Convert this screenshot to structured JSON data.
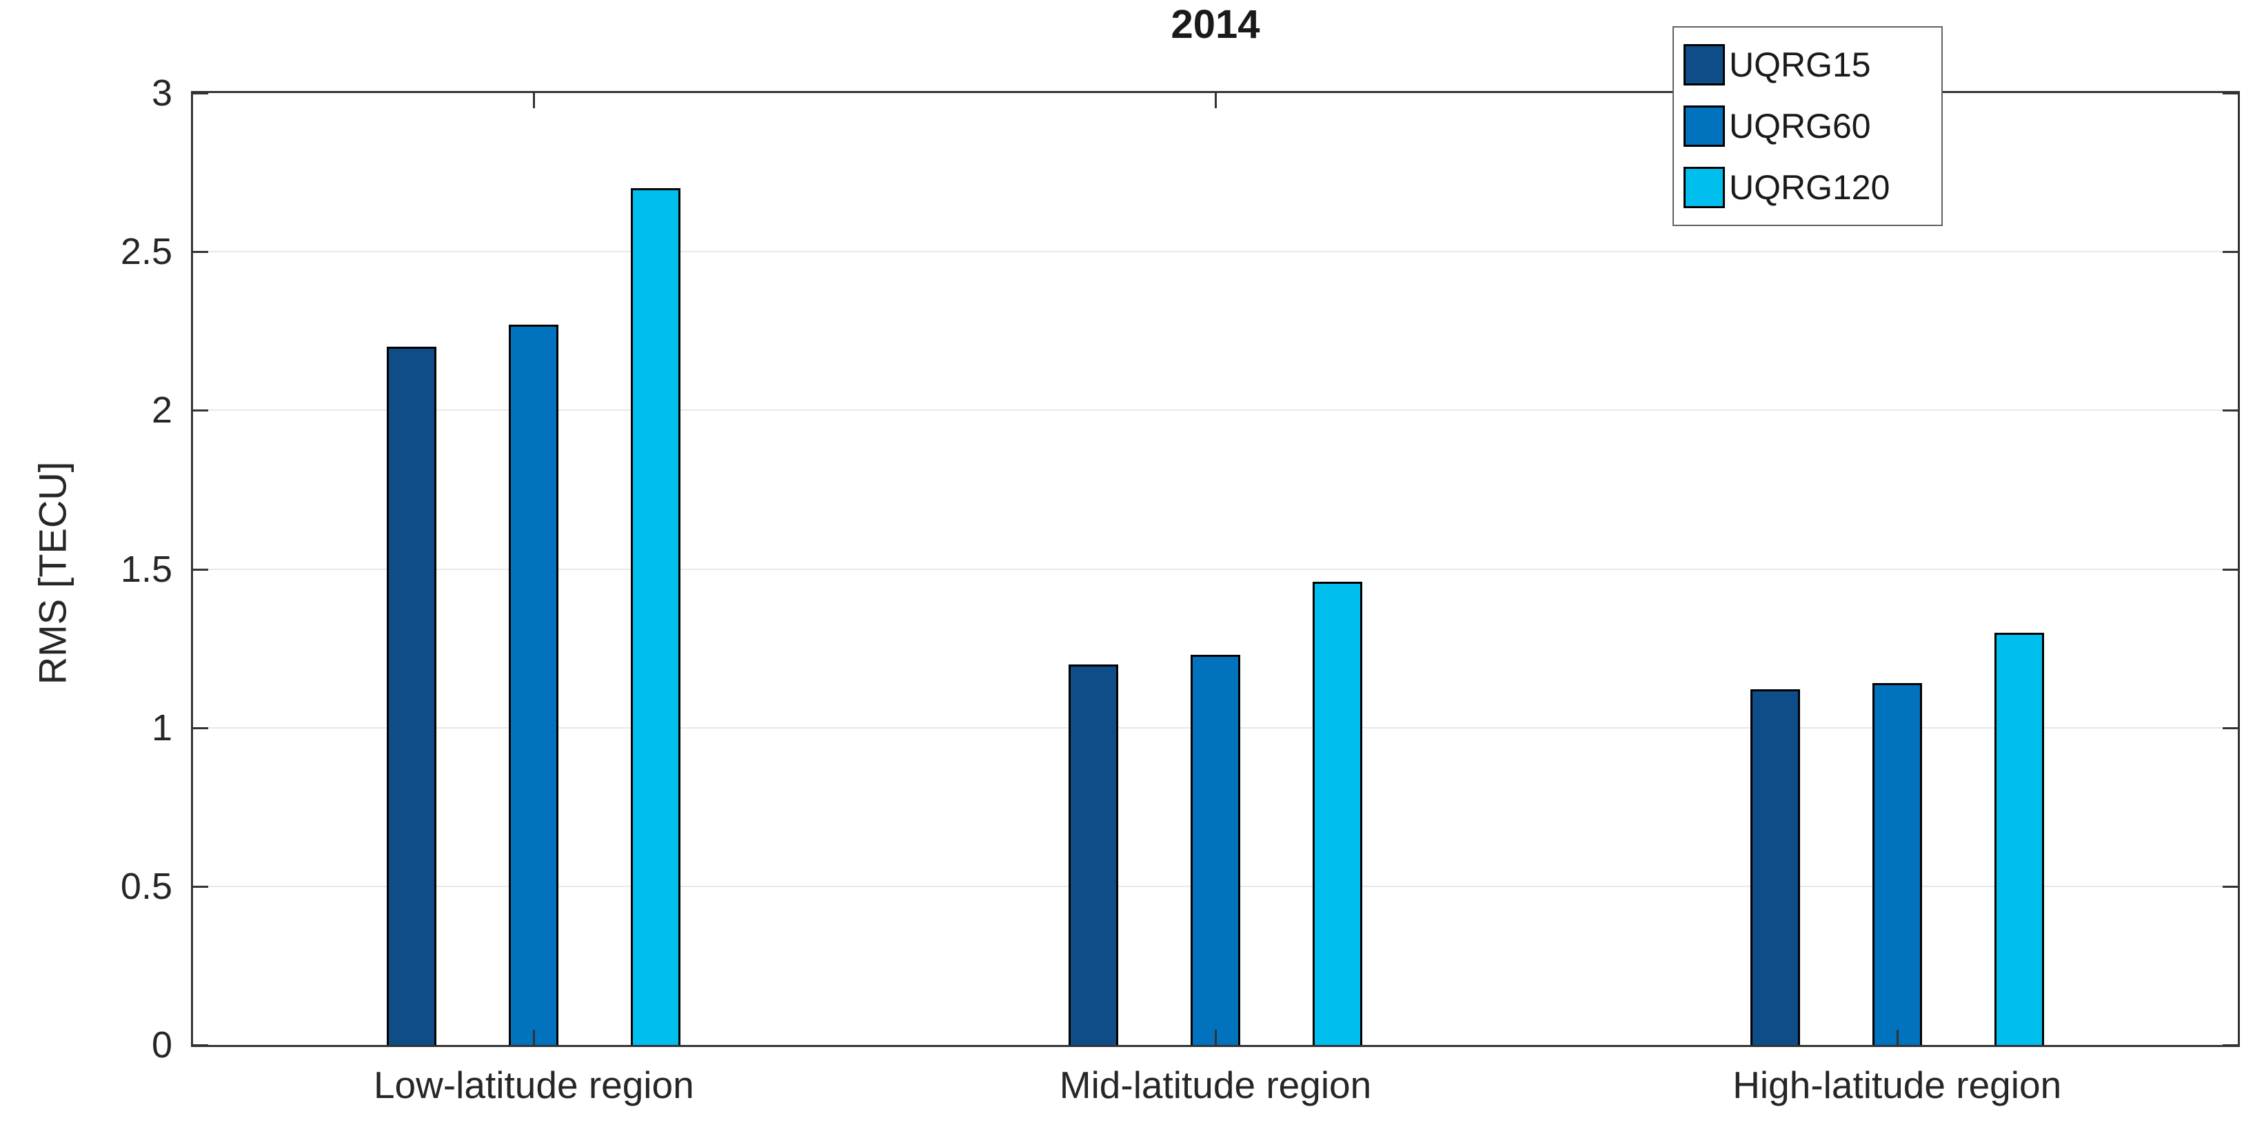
{
  "chart_data": {
    "type": "bar",
    "title": "2014",
    "ylabel": "RMS [TECU]",
    "xlabel": "",
    "categories": [
      "Low-latitude region",
      "Mid-latitude region",
      "High-latitude region"
    ],
    "series": [
      {
        "name": "UQRG15",
        "color": "#0E4D87",
        "values": [
          2.2,
          1.2,
          1.12
        ]
      },
      {
        "name": "UQRG60",
        "color": "#0072BE",
        "values": [
          2.27,
          1.23,
          1.14
        ]
      },
      {
        "name": "UQRG120",
        "color": "#00BFEE",
        "values": [
          2.7,
          1.46,
          1.3
        ]
      }
    ],
    "ylim": [
      0,
      3
    ],
    "yticks": [
      "0",
      "0.5",
      "1",
      "1.5",
      "2",
      "2.5",
      "3"
    ],
    "grid": "horizontal-only",
    "legend_position": "top-right-inside",
    "bar_edge_color": "#000000",
    "gridline_color": "#E8E8E8",
    "axis_color": "#333333"
  }
}
